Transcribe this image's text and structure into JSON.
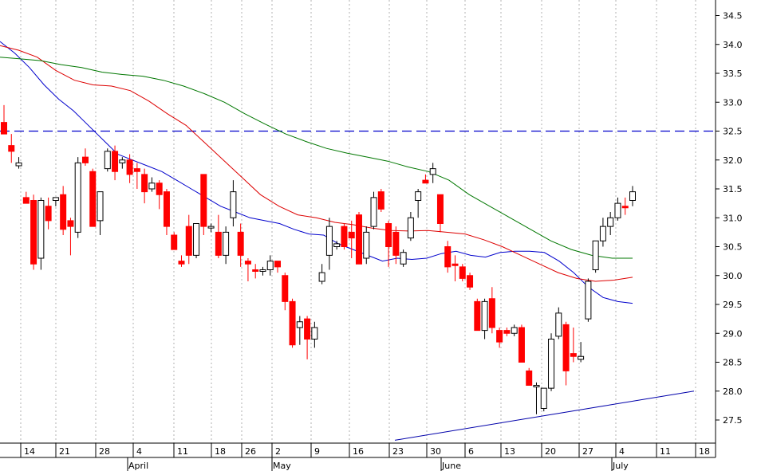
{
  "chart_data": {
    "type": "candlestick",
    "title": "",
    "xlabel": "",
    "ylabel": "",
    "ylim": [
      27.1,
      34.7
    ],
    "y_ticks": [
      "27.5",
      "28.0",
      "28.5",
      "29.0",
      "29.5",
      "30.0",
      "30.5",
      "31.0",
      "31.5",
      "32.0",
      "32.5",
      "33.0",
      "33.5",
      "34.0",
      "34.5"
    ],
    "x_day_ticks": [
      "14",
      "21",
      "28",
      "4",
      "11",
      "18",
      "26",
      "2",
      "9",
      "16",
      "23",
      "30",
      "6",
      "13",
      "20",
      "27",
      "4",
      "11",
      "18"
    ],
    "x_month_labels": [
      "April",
      "May",
      "June",
      "July"
    ],
    "grid": "vertical-dotted",
    "candles": [
      {
        "o": 32.65,
        "h": 32.95,
        "l": 32.45,
        "c": 32.45,
        "up": false
      },
      {
        "o": 32.25,
        "h": 32.45,
        "l": 31.95,
        "c": 32.15,
        "up": false
      },
      {
        "o": 31.95,
        "h": 32.05,
        "l": 31.85,
        "c": 31.9,
        "up": true
      },
      {
        "o": 31.35,
        "h": 31.45,
        "l": 31.25,
        "c": 31.25,
        "up": false
      },
      {
        "o": 31.3,
        "h": 31.4,
        "l": 30.1,
        "c": 30.2,
        "up": false
      },
      {
        "o": 30.3,
        "h": 31.35,
        "l": 30.1,
        "c": 31.3,
        "up": true
      },
      {
        "o": 31.2,
        "h": 31.35,
        "l": 30.8,
        "c": 30.95,
        "up": false
      },
      {
        "o": 31.3,
        "h": 31.35,
        "l": 31.2,
        "c": 31.35,
        "up": true
      },
      {
        "o": 31.4,
        "h": 31.55,
        "l": 30.7,
        "c": 30.8,
        "up": false
      },
      {
        "o": 30.95,
        "h": 31.0,
        "l": 30.35,
        "c": 30.85,
        "up": false
      },
      {
        "o": 30.75,
        "h": 32.05,
        "l": 30.65,
        "c": 31.95,
        "up": true
      },
      {
        "o": 32.05,
        "h": 32.2,
        "l": 31.9,
        "c": 31.95,
        "up": false
      },
      {
        "o": 31.8,
        "h": 31.85,
        "l": 30.85,
        "c": 30.85,
        "up": false
      },
      {
        "o": 30.95,
        "h": 31.45,
        "l": 30.7,
        "c": 31.45,
        "up": true
      },
      {
        "o": 31.85,
        "h": 32.2,
        "l": 31.8,
        "c": 32.15,
        "up": true
      },
      {
        "o": 32.15,
        "h": 32.25,
        "l": 31.65,
        "c": 31.8,
        "up": false
      },
      {
        "o": 31.95,
        "h": 32.05,
        "l": 31.85,
        "c": 32.0,
        "up": true
      },
      {
        "o": 32.0,
        "h": 32.1,
        "l": 31.6,
        "c": 31.75,
        "up": false
      },
      {
        "o": 31.85,
        "h": 31.95,
        "l": 31.5,
        "c": 31.8,
        "up": false
      },
      {
        "o": 31.75,
        "h": 31.85,
        "l": 31.25,
        "c": 31.45,
        "up": false
      },
      {
        "o": 31.5,
        "h": 31.7,
        "l": 31.45,
        "c": 31.6,
        "up": true
      },
      {
        "o": 31.6,
        "h": 31.65,
        "l": 31.15,
        "c": 31.4,
        "up": false
      },
      {
        "o": 31.45,
        "h": 31.5,
        "l": 30.7,
        "c": 30.85,
        "up": false
      },
      {
        "o": 30.7,
        "h": 30.75,
        "l": 30.45,
        "c": 30.45,
        "up": false
      },
      {
        "o": 30.25,
        "h": 30.35,
        "l": 30.15,
        "c": 30.2,
        "up": false
      },
      {
        "o": 30.85,
        "h": 31.05,
        "l": 30.2,
        "c": 30.35,
        "up": false
      },
      {
        "o": 30.35,
        "h": 30.9,
        "l": 30.3,
        "c": 30.9,
        "up": true
      },
      {
        "o": 31.75,
        "h": 31.75,
        "l": 30.7,
        "c": 30.85,
        "up": false
      },
      {
        "o": 30.85,
        "h": 30.9,
        "l": 30.75,
        "c": 30.85,
        "up": true
      },
      {
        "o": 30.75,
        "h": 31.05,
        "l": 30.3,
        "c": 30.35,
        "up": false
      },
      {
        "o": 30.35,
        "h": 30.85,
        "l": 30.2,
        "c": 30.75,
        "up": true
      },
      {
        "o": 31.0,
        "h": 31.65,
        "l": 30.85,
        "c": 31.45,
        "up": true
      },
      {
        "o": 30.75,
        "h": 30.9,
        "l": 30.15,
        "c": 30.35,
        "up": false
      },
      {
        "o": 30.25,
        "h": 30.3,
        "l": 29.9,
        "c": 30.2,
        "up": false
      },
      {
        "o": 30.1,
        "h": 30.2,
        "l": 29.95,
        "c": 30.1,
        "up": false
      },
      {
        "o": 30.1,
        "h": 30.15,
        "l": 30.0,
        "c": 30.1,
        "up": true
      },
      {
        "o": 30.1,
        "h": 30.35,
        "l": 30.0,
        "c": 30.25,
        "up": true
      },
      {
        "o": 30.25,
        "h": 30.25,
        "l": 30.05,
        "c": 30.15,
        "up": false
      },
      {
        "o": 30.0,
        "h": 30.05,
        "l": 29.4,
        "c": 29.55,
        "up": false
      },
      {
        "o": 29.55,
        "h": 29.6,
        "l": 28.75,
        "c": 28.8,
        "up": false
      },
      {
        "o": 29.1,
        "h": 29.3,
        "l": 28.8,
        "c": 29.2,
        "up": true
      },
      {
        "o": 29.25,
        "h": 29.3,
        "l": 28.55,
        "c": 28.9,
        "up": false
      },
      {
        "o": 28.9,
        "h": 29.2,
        "l": 28.75,
        "c": 29.1,
        "up": true
      },
      {
        "o": 29.9,
        "h": 30.2,
        "l": 29.85,
        "c": 30.05,
        "up": true
      },
      {
        "o": 30.35,
        "h": 31.0,
        "l": 30.1,
        "c": 30.85,
        "up": true
      },
      {
        "o": 30.55,
        "h": 30.6,
        "l": 30.45,
        "c": 30.5,
        "up": true
      },
      {
        "o": 30.85,
        "h": 30.9,
        "l": 30.45,
        "c": 30.5,
        "up": false
      },
      {
        "o": 30.75,
        "h": 30.95,
        "l": 30.3,
        "c": 30.65,
        "up": false
      },
      {
        "o": 31.05,
        "h": 31.1,
        "l": 30.2,
        "c": 30.2,
        "up": false
      },
      {
        "o": 30.3,
        "h": 30.85,
        "l": 30.2,
        "c": 30.75,
        "up": true
      },
      {
        "o": 30.85,
        "h": 31.45,
        "l": 30.8,
        "c": 31.35,
        "up": true
      },
      {
        "o": 31.45,
        "h": 31.5,
        "l": 31.1,
        "c": 31.15,
        "up": false
      },
      {
        "o": 30.9,
        "h": 30.95,
        "l": 30.15,
        "c": 30.5,
        "up": false
      },
      {
        "o": 30.75,
        "h": 30.85,
        "l": 30.2,
        "c": 30.35,
        "up": false
      },
      {
        "o": 30.2,
        "h": 30.45,
        "l": 30.15,
        "c": 30.4,
        "up": true
      },
      {
        "o": 30.65,
        "h": 31.1,
        "l": 30.6,
        "c": 31.0,
        "up": true
      },
      {
        "o": 31.3,
        "h": 31.5,
        "l": 31.0,
        "c": 31.45,
        "up": true
      },
      {
        "o": 31.6,
        "h": 31.75,
        "l": 31.6,
        "c": 31.65,
        "up": false
      },
      {
        "o": 31.75,
        "h": 31.95,
        "l": 31.6,
        "c": 31.85,
        "up": true
      },
      {
        "o": 31.4,
        "h": 31.4,
        "l": 30.75,
        "c": 30.9,
        "up": false
      },
      {
        "o": 30.5,
        "h": 30.6,
        "l": 30.05,
        "c": 30.15,
        "up": false
      },
      {
        "o": 30.2,
        "h": 30.35,
        "l": 29.9,
        "c": 30.2,
        "up": false
      },
      {
        "o": 30.15,
        "h": 30.2,
        "l": 29.9,
        "c": 29.95,
        "up": false
      },
      {
        "o": 30.0,
        "h": 30.05,
        "l": 29.75,
        "c": 29.8,
        "up": false
      },
      {
        "o": 29.55,
        "h": 29.6,
        "l": 29.05,
        "c": 29.05,
        "up": false
      },
      {
        "o": 29.05,
        "h": 29.6,
        "l": 28.9,
        "c": 29.55,
        "up": true
      },
      {
        "o": 29.6,
        "h": 29.8,
        "l": 29.0,
        "c": 29.1,
        "up": false
      },
      {
        "o": 29.05,
        "h": 29.1,
        "l": 28.75,
        "c": 28.85,
        "up": false
      },
      {
        "o": 29.05,
        "h": 29.1,
        "l": 28.95,
        "c": 29.0,
        "up": false
      },
      {
        "o": 29.1,
        "h": 29.15,
        "l": 28.95,
        "c": 29.0,
        "up": true
      },
      {
        "o": 29.1,
        "h": 29.15,
        "l": 28.5,
        "c": 28.5,
        "up": false
      },
      {
        "o": 28.35,
        "h": 28.4,
        "l": 28.1,
        "c": 28.1,
        "up": false
      },
      {
        "o": 28.1,
        "h": 28.15,
        "l": 27.6,
        "c": 28.1,
        "up": true
      },
      {
        "o": 27.7,
        "h": 28.05,
        "l": 27.65,
        "c": 28.05,
        "up": true
      },
      {
        "o": 28.05,
        "h": 29.0,
        "l": 28.0,
        "c": 28.9,
        "up": true
      },
      {
        "o": 28.95,
        "h": 29.45,
        "l": 28.9,
        "c": 29.35,
        "up": true
      },
      {
        "o": 29.15,
        "h": 29.2,
        "l": 28.1,
        "c": 28.35,
        "up": false
      },
      {
        "o": 28.65,
        "h": 29.1,
        "l": 28.5,
        "c": 28.6,
        "up": false
      },
      {
        "o": 28.6,
        "h": 28.85,
        "l": 28.5,
        "c": 28.55,
        "up": true
      },
      {
        "o": 29.25,
        "h": 29.95,
        "l": 29.2,
        "c": 29.9,
        "up": true
      },
      {
        "o": 30.1,
        "h": 30.6,
        "l": 30.05,
        "c": 30.6,
        "up": true
      },
      {
        "o": 30.6,
        "h": 31.0,
        "l": 30.5,
        "c": 30.85,
        "up": true
      },
      {
        "o": 30.85,
        "h": 31.1,
        "l": 30.7,
        "c": 31.0,
        "up": true
      },
      {
        "o": 31.0,
        "h": 31.35,
        "l": 30.95,
        "c": 31.25,
        "up": true
      },
      {
        "o": 31.2,
        "h": 31.35,
        "l": 31.05,
        "c": 31.2,
        "up": false
      },
      {
        "o": 31.3,
        "h": 31.55,
        "l": 31.2,
        "c": 31.45,
        "up": true
      }
    ],
    "series": [
      {
        "values": [
          34.05,
          33.85,
          33.6,
          33.3,
          33.05,
          32.85,
          32.6,
          32.35,
          32.1,
          32.0,
          31.9,
          31.8,
          31.65,
          31.5,
          31.35,
          31.2,
          31.1,
          31.0,
          30.95,
          30.9,
          30.8,
          30.72,
          30.7,
          30.55,
          30.45,
          30.35,
          30.25,
          30.3,
          30.28,
          30.3,
          30.38,
          30.42,
          30.35,
          30.32,
          30.4,
          30.42,
          30.42,
          30.4,
          30.25,
          30.05,
          29.8,
          29.62,
          29.55,
          29.52
        ]
      },
      {
        "values": [
          33.98,
          33.9,
          33.78,
          33.55,
          33.38,
          33.3,
          33.28,
          33.2,
          33.02,
          32.8,
          32.6,
          32.3,
          32.0,
          31.7,
          31.4,
          31.2,
          31.05,
          31.0,
          30.92,
          30.88,
          30.82,
          30.78,
          30.77,
          30.78,
          30.75,
          30.72,
          30.62,
          30.5,
          30.35,
          30.2,
          30.05,
          29.95,
          29.9,
          29.92,
          29.97
        ]
      },
      {
        "values": [
          33.78,
          33.75,
          33.72,
          33.65,
          33.6,
          33.52,
          33.48,
          33.45,
          33.38,
          33.28,
          33.15,
          33.0,
          32.8,
          32.62,
          32.45,
          32.32,
          32.2,
          32.12,
          32.05,
          31.98,
          31.88,
          31.8,
          31.65,
          31.4,
          31.2,
          31.0,
          30.8,
          30.6,
          30.45,
          30.35,
          30.3,
          30.3
        ]
      }
    ],
    "reference_lines": [
      {
        "type": "horizontal",
        "y": 32.5,
        "style": "dashed"
      },
      {
        "type": "trendline",
        "points": [
          [
            "22-May",
            27.15
          ],
          [
            "19-Jul",
            28.0
          ]
        ]
      }
    ]
  },
  "colors": {
    "up": "#ffffff",
    "down": "#ff0000",
    "ma_short": "#0000cc",
    "ma_mid": "#dd0000",
    "ma_long": "#007700",
    "reference": "#0000cc",
    "trend": "#0000aa",
    "grid": "#b0b0b0"
  }
}
